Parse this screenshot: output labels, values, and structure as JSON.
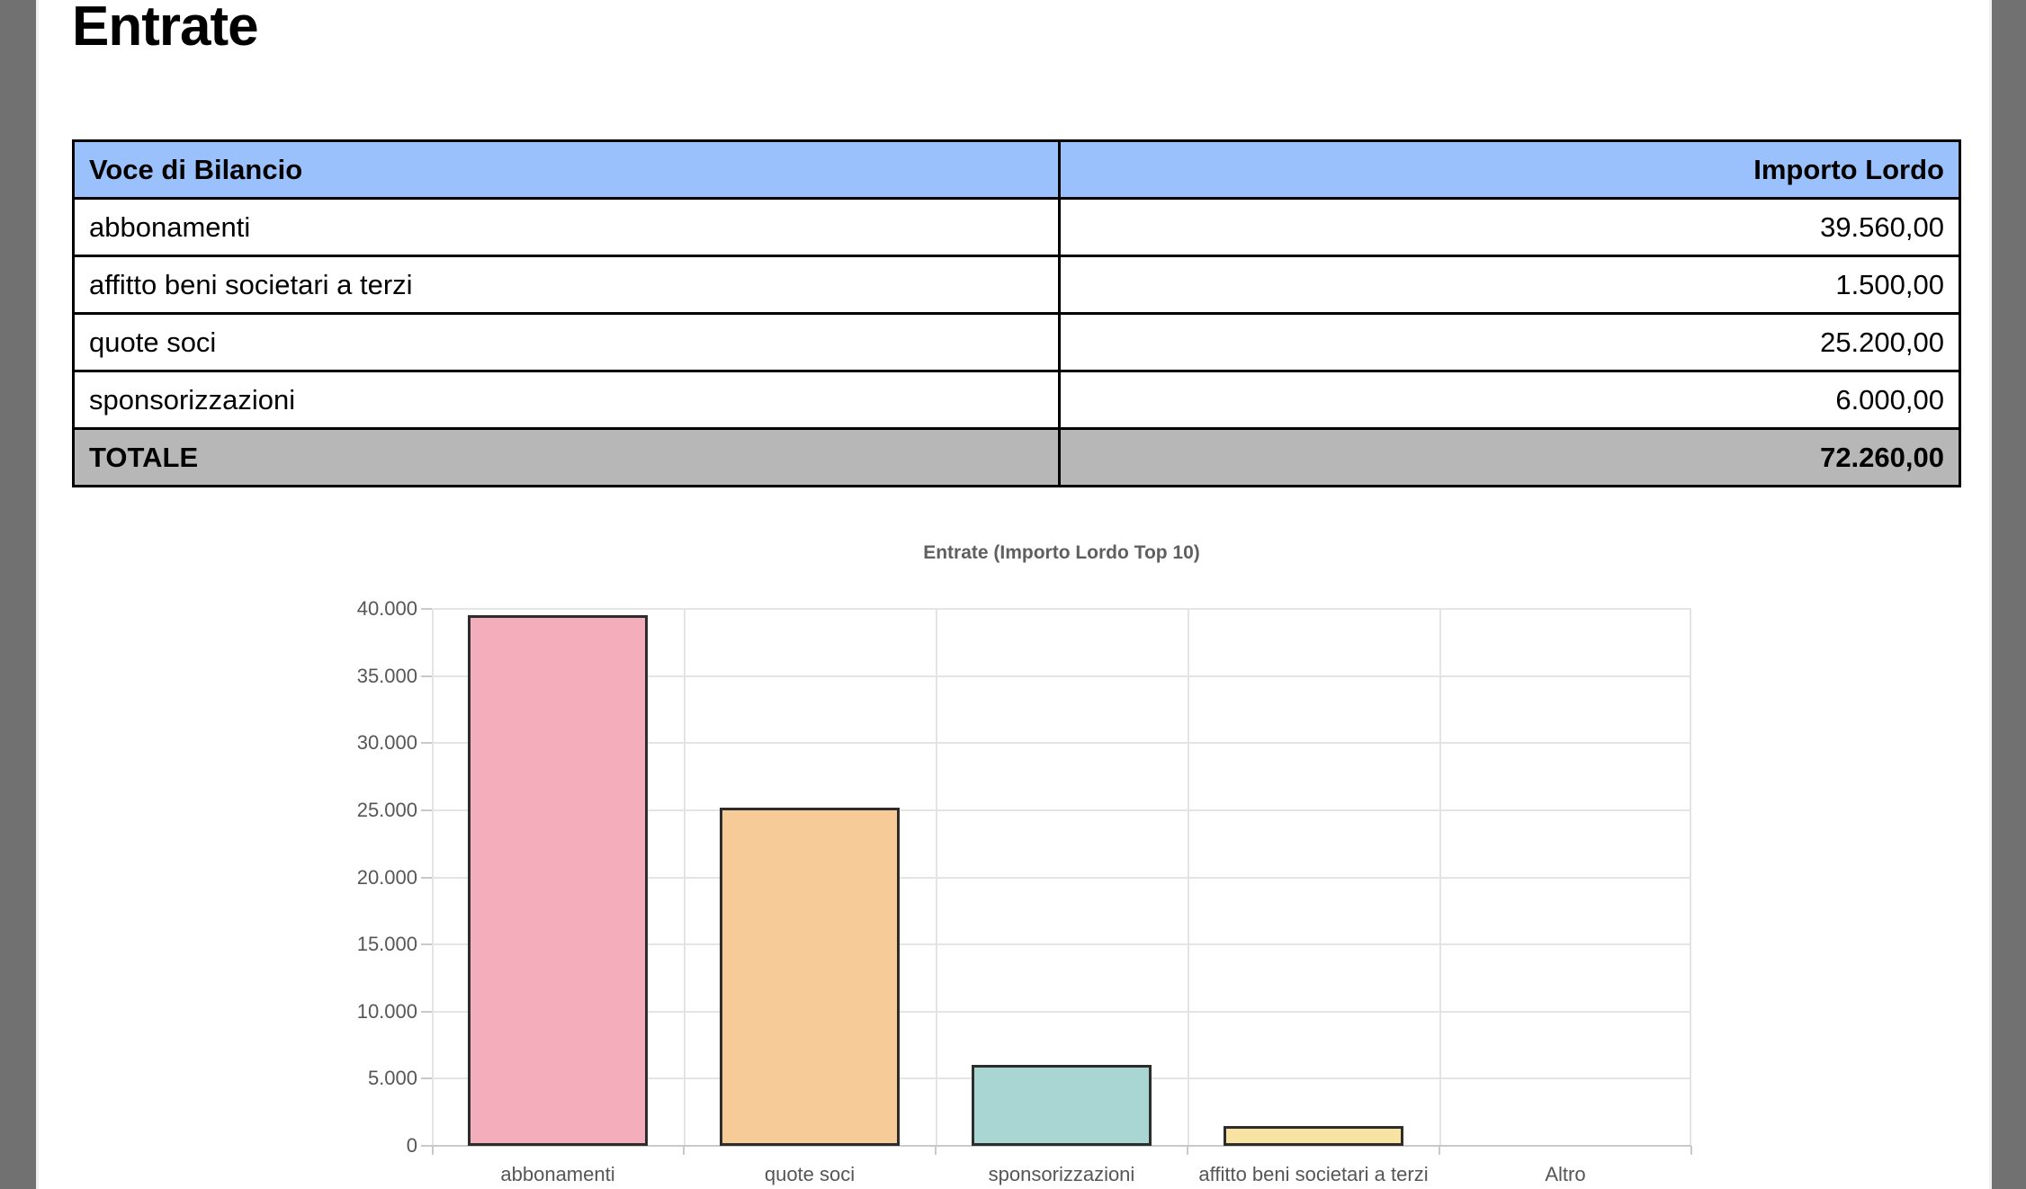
{
  "page": {
    "title": "Entrate"
  },
  "colors": {
    "header_bg": "#9ac1fb",
    "total_bg": "#b7b7b7",
    "gutter": "#717171",
    "grid": "#e4e4e4",
    "axis": "#c9c9c9",
    "bar_border": "#2d2d2d"
  },
  "table": {
    "headers": [
      "Voce di Bilancio",
      "Importo Lordo"
    ],
    "rows": [
      {
        "label": "abbonamenti",
        "value": "39.560,00",
        "total": false
      },
      {
        "label": "affitto beni societari a terzi",
        "value": "1.500,00",
        "total": false
      },
      {
        "label": "quote soci",
        "value": "25.200,00",
        "total": false
      },
      {
        "label": "sponsorizzazioni",
        "value": "6.000,00",
        "total": false
      },
      {
        "label": "TOTALE",
        "value": "72.260,00",
        "total": true
      }
    ]
  },
  "chart_data": {
    "type": "bar",
    "title": "Entrate (Importo Lordo Top 10)",
    "categories": [
      "abbonamenti",
      "quote soci",
      "sponsorizzazioni",
      "affitto beni societari a terzi",
      "Altro"
    ],
    "values": [
      39560,
      25200,
      6000,
      1500,
      0
    ],
    "bar_colors": [
      "#f3adbb",
      "#f6cb97",
      "#a9d5d2",
      "#f8e3a3",
      "#dddddd"
    ],
    "xlabel": "",
    "ylabel": "",
    "ylim": [
      0,
      40000
    ],
    "y_tick_step": 5000,
    "y_tick_labels": [
      "0",
      "5.000",
      "10.000",
      "15.000",
      "20.000",
      "25.000",
      "30.000",
      "35.000",
      "40.000"
    ],
    "grid": true,
    "legend": false
  }
}
